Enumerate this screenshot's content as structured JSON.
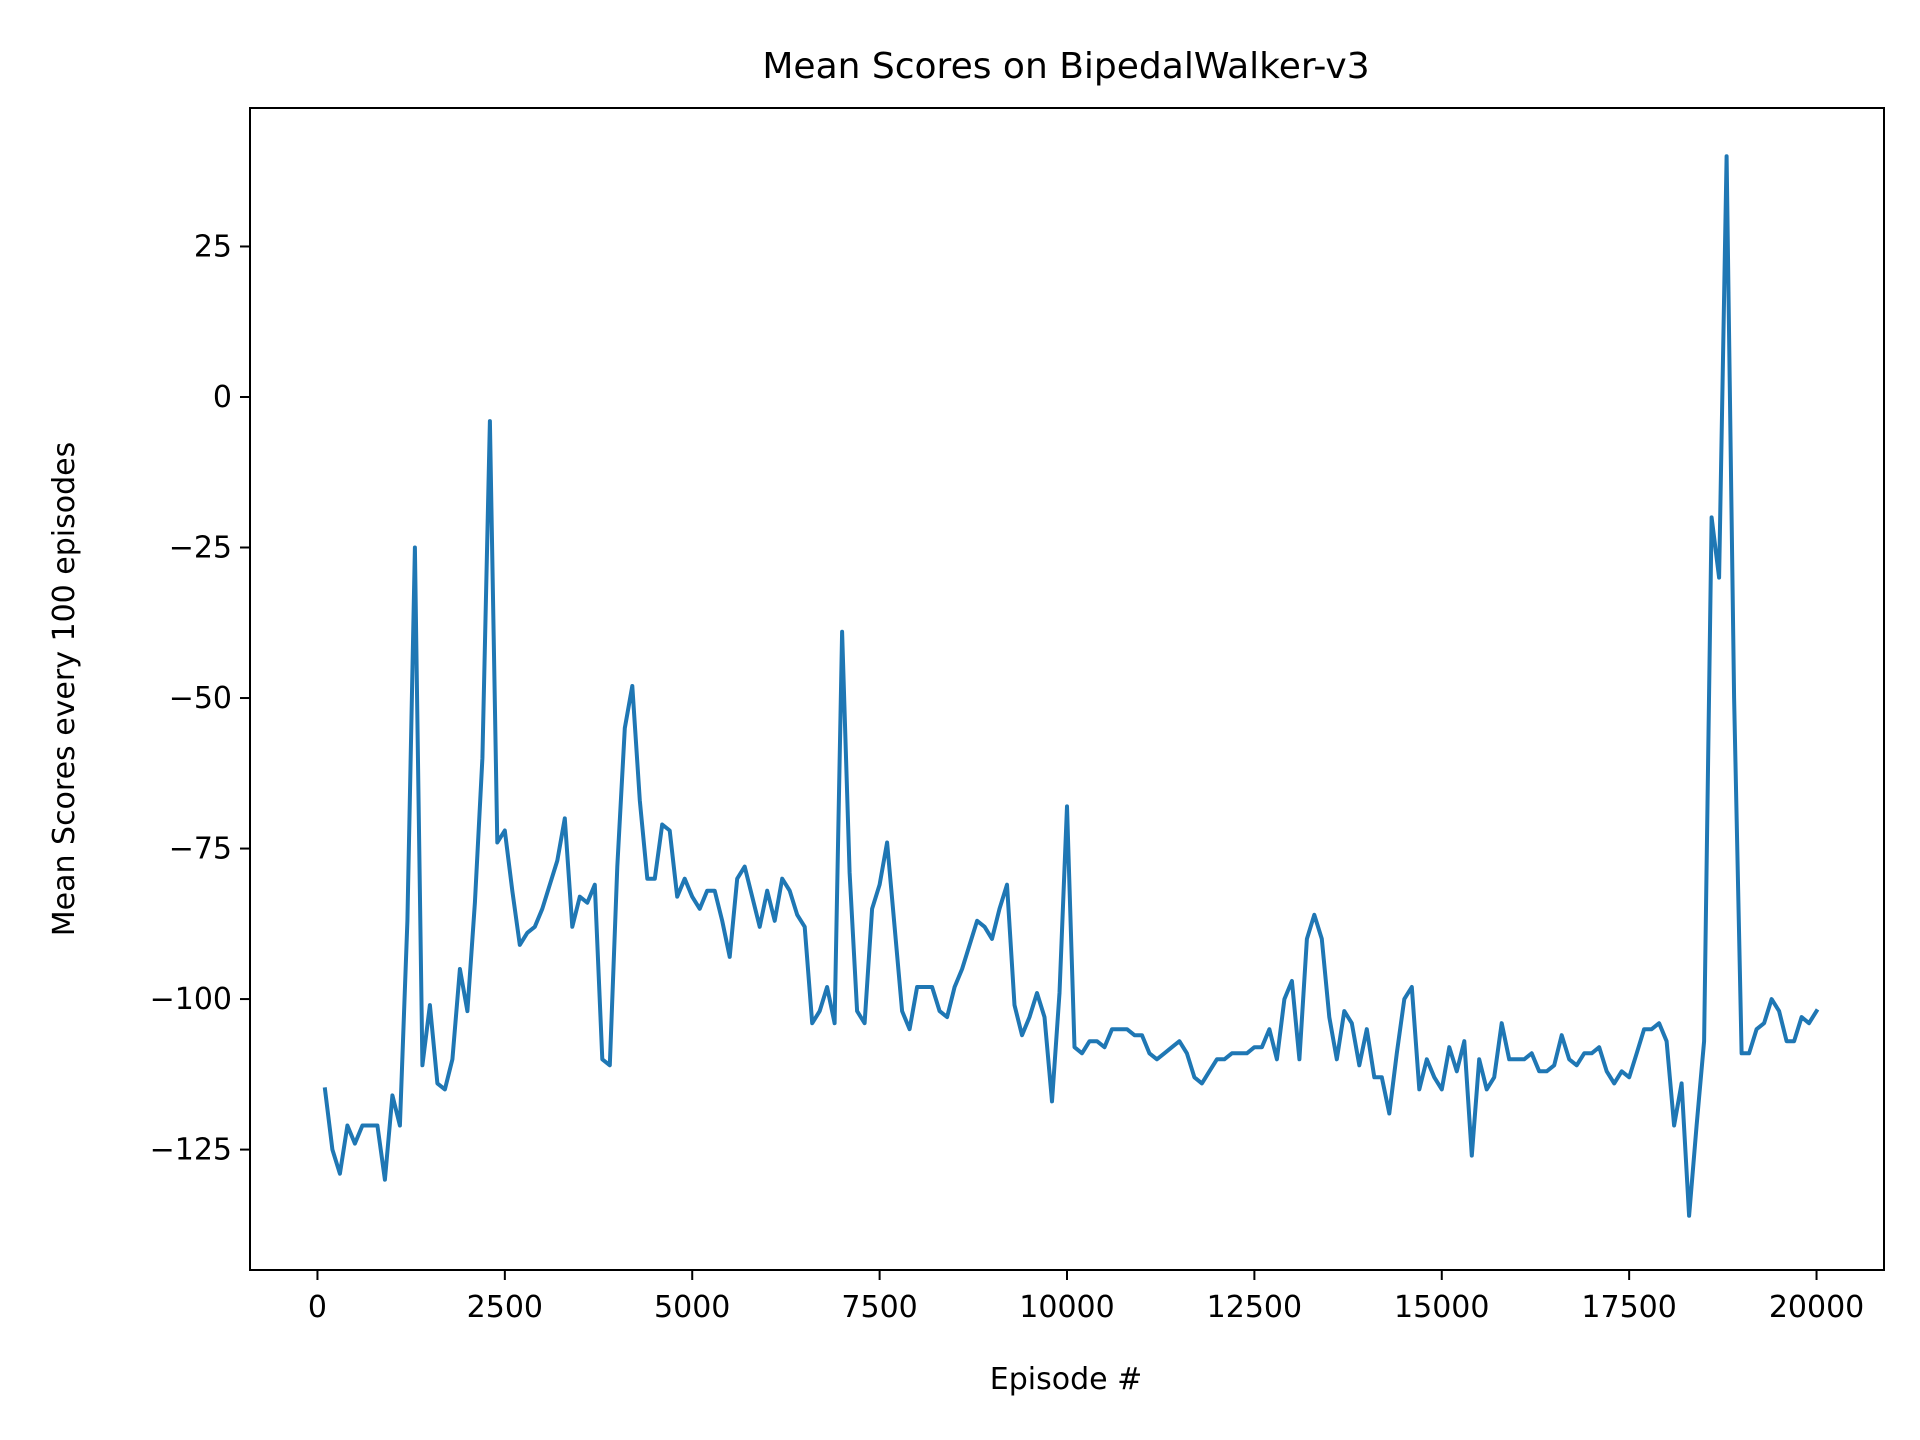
{
  "chart_data": {
    "type": "line",
    "title": "Mean Scores on BipedalWalker-v3",
    "xlabel": "Episode #",
    "ylabel": "Mean Scores every 100 episodes",
    "xlim": [
      -900,
      20900
    ],
    "ylim": [
      -145,
      48
    ],
    "x_ticks": [
      0,
      2500,
      5000,
      7500,
      10000,
      12500,
      15000,
      17500,
      20000
    ],
    "x_tick_labels": [
      "0",
      "2500",
      "5000",
      "7500",
      "10000",
      "12500",
      "15000",
      "17500",
      "20000"
    ],
    "y_ticks": [
      -125,
      -100,
      -75,
      -50,
      -25,
      0,
      25
    ],
    "y_tick_labels": [
      "−125",
      "−100",
      "−75",
      "−50",
      "−25",
      "0",
      "25"
    ],
    "grid": false,
    "series": [
      {
        "name": "",
        "color": "#1f77b4",
        "x": [
          100,
          200,
          300,
          400,
          500,
          600,
          700,
          800,
          900,
          1000,
          1100,
          1200,
          1300,
          1400,
          1500,
          1600,
          1700,
          1800,
          1900,
          2000,
          2100,
          2200,
          2300,
          2400,
          2500,
          2600,
          2700,
          2800,
          2900,
          3000,
          3100,
          3200,
          3300,
          3400,
          3500,
          3600,
          3700,
          3800,
          3900,
          4000,
          4100,
          4200,
          4300,
          4400,
          4500,
          4600,
          4700,
          4800,
          4900,
          5000,
          5100,
          5200,
          5300,
          5400,
          5500,
          5600,
          5700,
          5800,
          5900,
          6000,
          6100,
          6200,
          6300,
          6400,
          6500,
          6600,
          6700,
          6800,
          6900,
          7000,
          7100,
          7200,
          7300,
          7400,
          7500,
          7600,
          7700,
          7800,
          7900,
          8000,
          8100,
          8200,
          8300,
          8400,
          8500,
          8600,
          8700,
          8800,
          8900,
          9000,
          9100,
          9200,
          9300,
          9400,
          9500,
          9600,
          9700,
          9800,
          9900,
          10000,
          10100,
          10200,
          10300,
          10400,
          10500,
          10600,
          10700,
          10800,
          10900,
          11000,
          11100,
          11200,
          11300,
          11400,
          11500,
          11600,
          11700,
          11800,
          11900,
          12000,
          12100,
          12200,
          12300,
          12400,
          12500,
          12600,
          12700,
          12800,
          12900,
          13000,
          13100,
          13200,
          13300,
          13400,
          13500,
          13600,
          13700,
          13800,
          13900,
          14000,
          14100,
          14200,
          14300,
          14400,
          14500,
          14600,
          14700,
          14800,
          14900,
          15000,
          15100,
          15200,
          15300,
          15400,
          15500,
          15600,
          15700,
          15800,
          15900,
          16000,
          16100,
          16200,
          16300,
          16400,
          16500,
          16600,
          16700,
          16800,
          16900,
          17000,
          17100,
          17200,
          17300,
          17400,
          17500,
          17600,
          17700,
          17800,
          17900,
          18000,
          18100,
          18200,
          18300,
          18400,
          18500,
          18600,
          18700,
          18800,
          18900,
          19000,
          19100,
          19200,
          19300,
          19400,
          19500,
          19600,
          19700,
          19800,
          19900,
          20000
        ],
        "values": [
          -115,
          -125,
          -129,
          -121,
          -124,
          -121,
          -121,
          -121,
          -130,
          -116,
          -121,
          -87,
          -25,
          -111,
          -101,
          -114,
          -115,
          -110,
          -95,
          -102,
          -84,
          -60,
          -4,
          -74,
          -72,
          -82,
          -91,
          -89,
          -88,
          -85,
          -81,
          -77,
          -70,
          -88,
          -83,
          -84,
          -81,
          -110,
          -111,
          -78,
          -55,
          -48,
          -67,
          -80,
          -80,
          -71,
          -72,
          -83,
          -80,
          -83,
          -85,
          -82,
          -82,
          -87,
          -93,
          -80,
          -78,
          -83,
          -88,
          -82,
          -87,
          -80,
          -82,
          -86,
          -88,
          -104,
          -102,
          -98,
          -104,
          -39,
          -79,
          -102,
          -104,
          -85,
          -81,
          -74,
          -88,
          -102,
          -105,
          -98,
          -98,
          -98,
          -102,
          -103,
          -98,
          -95,
          -91,
          -87,
          -88,
          -90,
          -85,
          -81,
          -101,
          -106,
          -103,
          -99,
          -103,
          -117,
          -99,
          -68,
          -108,
          -109,
          -107,
          -107,
          -108,
          -105,
          -105,
          -105,
          -106,
          -106,
          -109,
          -110,
          -109,
          -108,
          -107,
          -109,
          -113,
          -114,
          -112,
          -110,
          -110,
          -109,
          -109,
          -109,
          -108,
          -108,
          -105,
          -110,
          -100,
          -97,
          -110,
          -90,
          -86,
          -90,
          -103,
          -110,
          -102,
          -104,
          -111,
          -105,
          -113,
          -113,
          -119,
          -109,
          -100,
          -98,
          -115,
          -110,
          -113,
          -115,
          -108,
          -112,
          -107,
          -126,
          -110,
          -115,
          -113,
          -104,
          -110,
          -110,
          -110,
          -109,
          -112,
          -112,
          -111,
          -106,
          -110,
          -111,
          -109,
          -109,
          -108,
          -112,
          -114,
          -112,
          -113,
          -109,
          -105,
          -105,
          -104,
          -107,
          -121,
          -114,
          -136,
          -121,
          -107,
          -20,
          -30,
          40,
          -50,
          -109,
          -109,
          -105,
          -104,
          -100,
          -102,
          -107,
          -107,
          -103,
          -104,
          -102
        ]
      }
    ]
  }
}
